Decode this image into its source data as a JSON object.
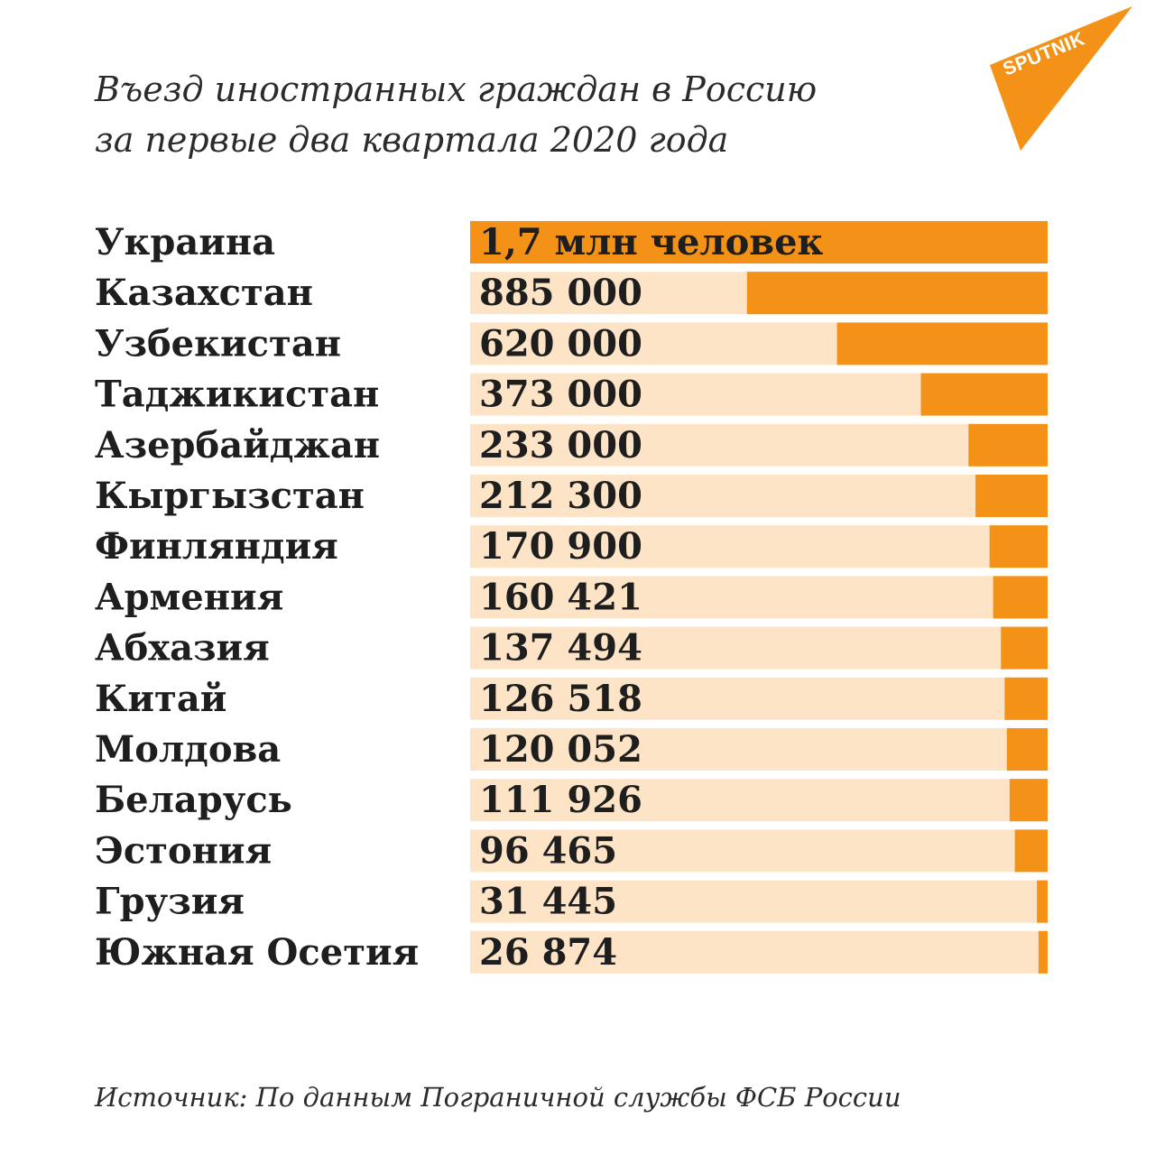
{
  "brand": {
    "logo_text": "SPUTNIK",
    "logo_color": "#f39216"
  },
  "colors": {
    "bar_fill": "#f39216",
    "bar_track": "#fde4c6",
    "text": "#1e1e1e"
  },
  "chart_data": {
    "type": "bar",
    "orientation": "horizontal",
    "title": "Въезд иностранных граждан в Россию за первые два квартала 2020 года",
    "title_lines": [
      "Въезд иностранных граждан в Россию",
      "за первые два квартала 2020 года"
    ],
    "categories": [
      "Украина",
      "Казахстан",
      "Узбекистан",
      "Таджикистан",
      "Азербайджан",
      "Кыргызстан",
      "Финляндия",
      "Армения",
      "Абхазия",
      "Китай",
      "Молдова",
      "Беларусь",
      "Эстония",
      "Грузия",
      "Южная Осетия"
    ],
    "values": [
      1700000,
      885000,
      620000,
      373000,
      233000,
      212300,
      170900,
      160421,
      137494,
      126518,
      120052,
      111926,
      96465,
      31445,
      26874
    ],
    "value_labels": [
      "1,7 млн человек",
      "885 000",
      "620 000",
      "373 000",
      "233 000",
      "212 300",
      "170 900",
      "160 421",
      "137 494",
      "126 518",
      "120 052",
      "111 926",
      "96 465",
      "31 445",
      "26 874"
    ],
    "bar_direction": "right-aligned",
    "legend": "none",
    "grid": false,
    "source": "Источник: По данным Пограничной службы ФСБ России"
  }
}
